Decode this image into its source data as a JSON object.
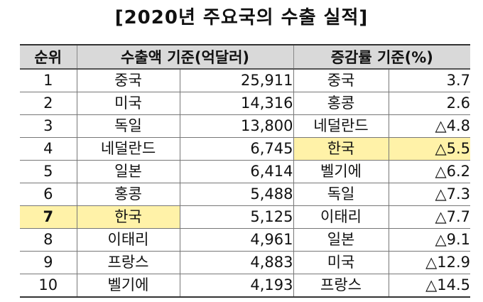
{
  "title": "[2020년 주요국의 수출 실적]",
  "headers": {
    "rank": "순위",
    "export_amount": "수출액 기준(억달러)",
    "growth_rate": "증감률 기준(%)"
  },
  "highlight_color": "#fff2a8",
  "highlighted_country": "한국",
  "rows": [
    {
      "rank": "1",
      "exp_country": "중국",
      "exp_value": "25,911",
      "rate_country": "중국",
      "rate_value": "3.7"
    },
    {
      "rank": "2",
      "exp_country": "미국",
      "exp_value": "14,316",
      "rate_country": "홍콩",
      "rate_value": "2.6"
    },
    {
      "rank": "3",
      "exp_country": "독일",
      "exp_value": "13,800",
      "rate_country": "네덜란드",
      "rate_value": "△4.8"
    },
    {
      "rank": "4",
      "exp_country": "네덜란드",
      "exp_value": "6,745",
      "rate_country": "한국",
      "rate_value": "△5.5"
    },
    {
      "rank": "5",
      "exp_country": "일본",
      "exp_value": "6,414",
      "rate_country": "벨기에",
      "rate_value": "△6.2"
    },
    {
      "rank": "6",
      "exp_country": "홍콩",
      "exp_value": "5,488",
      "rate_country": "독일",
      "rate_value": "△7.3"
    },
    {
      "rank": "7",
      "exp_country": "한국",
      "exp_value": "5,125",
      "rate_country": "이태리",
      "rate_value": "△7.7"
    },
    {
      "rank": "8",
      "exp_country": "이태리",
      "exp_value": "4,961",
      "rate_country": "일본",
      "rate_value": "△9.1"
    },
    {
      "rank": "9",
      "exp_country": "프랑스",
      "exp_value": "4,883",
      "rate_country": "미국",
      "rate_value": "△12.9"
    },
    {
      "rank": "10",
      "exp_country": "벨기에",
      "exp_value": "4,193",
      "rate_country": "프랑스",
      "rate_value": "△14.5"
    }
  ]
}
